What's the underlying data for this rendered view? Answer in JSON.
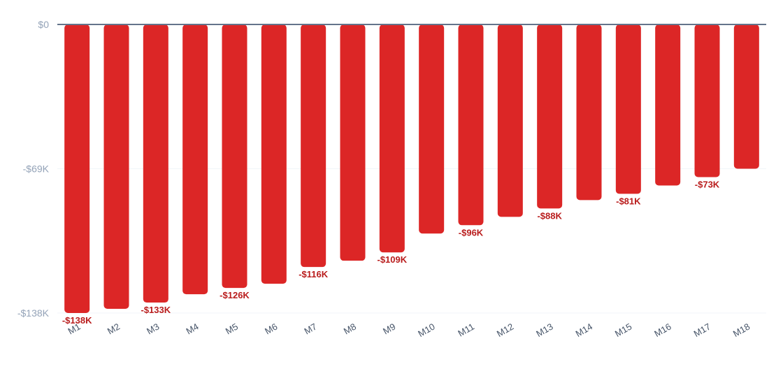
{
  "chart_data": {
    "type": "bar",
    "title": "",
    "xlabel": "",
    "ylabel": "",
    "categories": [
      "M1",
      "M2",
      "M3",
      "M4",
      "M5",
      "M6",
      "M7",
      "M8",
      "M9",
      "M10",
      "M11",
      "M12",
      "M13",
      "M14",
      "M15",
      "M16",
      "M17",
      "M18"
    ],
    "values": [
      -138,
      -136,
      -133,
      -129,
      -126,
      -124,
      -116,
      -113,
      -109,
      -100,
      -96,
      -92,
      -88,
      -84,
      -81,
      -77,
      -73,
      -69
    ],
    "value_labels": [
      "-$138K",
      "",
      "-$133K",
      "",
      "-$126K",
      "",
      "-$116K",
      "",
      "-$109K",
      "",
      "-$96K",
      "",
      "-$88K",
      "",
      "-$81K",
      "",
      "-$73K",
      ""
    ],
    "ylim": [
      -138,
      0
    ],
    "yticks": [
      0,
      -69,
      -138
    ],
    "ytick_labels": [
      "$0",
      "-$69K",
      "-$138K"
    ],
    "grid": true,
    "legend": "none",
    "colors": {
      "bar": "#dc2626",
      "data_label": "#b91c1c",
      "zero_line": "#64748b",
      "grid": "#f1f5f9",
      "tick_label": "#94a3b8",
      "category_label": "#475569"
    }
  }
}
